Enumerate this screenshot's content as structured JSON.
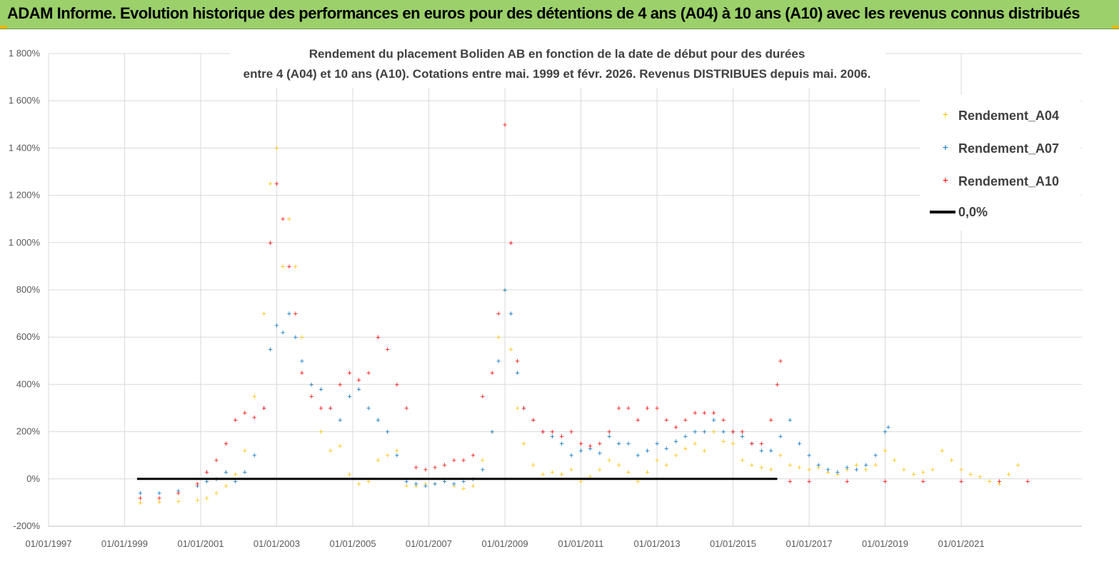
{
  "banner": {
    "text": "ADAM Informe. Evolution historique des performances en euros pour des détentions de 4 ans (A04) à 10 ans (A10) avec les revenus connus distribués"
  },
  "colors": {
    "banner_bg": "#9bd06a",
    "series_A04": "#ffc000",
    "series_A07": "#0070c0",
    "series_A10": "#ff0000",
    "zero_line": "#000000",
    "grid": "#d9d9d9"
  },
  "chart_data": {
    "type": "scatter",
    "title": [
      "Rendement du placement Boliden AB en fonction de la date de début pour des durées",
      "entre 4 (A04) et 10 ans (A10). Cotations entre mai. 1999 et févr. 2026. Revenus DISTRIBUES depuis mai. 2006."
    ],
    "xlabel": "",
    "ylabel": "",
    "x_ticks": [
      "01/01/1997",
      "01/01/1999",
      "01/01/2001",
      "01/01/2003",
      "01/01/2005",
      "01/01/2007",
      "01/01/2009",
      "01/01/2011",
      "01/01/2013",
      "01/01/2015",
      "01/01/2017",
      "01/01/2019",
      "01/01/2021"
    ],
    "y_ticks": [
      "-200%",
      "0%",
      "200%",
      "400%",
      "600%",
      "800%",
      "1 000%",
      "1 200%",
      "1 400%",
      "1 600%",
      "1 800%"
    ],
    "xlim": [
      "1997-01-01",
      "2023-12-31"
    ],
    "ylim": [
      -200,
      1800
    ],
    "grid": true,
    "legend_position": "top-right",
    "legend": [
      "Rendement_A04",
      "Rendement_A07",
      "Rendement_A10",
      "0,0%"
    ],
    "series": [
      {
        "name": "Rendement_A04",
        "color": "#ffc000",
        "x": [
          "1999-06-01",
          "1999-12-01",
          "2000-06-01",
          "2000-12-01",
          "2001-03-01",
          "2001-06-01",
          "2001-09-01",
          "2001-12-01",
          "2002-03-01",
          "2002-06-01",
          "2002-09-01",
          "2002-11-01",
          "2003-01-01",
          "2003-03-01",
          "2003-05-01",
          "2003-07-01",
          "2003-09-01",
          "2003-12-01",
          "2004-03-01",
          "2004-06-01",
          "2004-09-01",
          "2004-12-01",
          "2005-03-01",
          "2005-06-01",
          "2005-09-01",
          "2005-12-01",
          "2006-03-01",
          "2006-06-01",
          "2006-09-01",
          "2006-12-01",
          "2007-03-01",
          "2007-06-01",
          "2007-09-01",
          "2007-12-01",
          "2008-03-01",
          "2008-06-01",
          "2008-09-01",
          "2008-11-01",
          "2009-01-01",
          "2009-03-01",
          "2009-05-01",
          "2009-07-01",
          "2009-10-01",
          "2010-01-01",
          "2010-04-01",
          "2010-07-01",
          "2010-10-01",
          "2011-01-01",
          "2011-04-01",
          "2011-07-01",
          "2011-10-01",
          "2012-01-01",
          "2012-04-01",
          "2012-07-01",
          "2012-10-01",
          "2013-01-01",
          "2013-04-01",
          "2013-07-01",
          "2013-10-01",
          "2014-01-01",
          "2014-04-01",
          "2014-07-01",
          "2014-10-01",
          "2015-01-01",
          "2015-04-01",
          "2015-07-01",
          "2015-10-01",
          "2016-01-01",
          "2016-04-01",
          "2016-07-01",
          "2016-10-01",
          "2017-01-01",
          "2017-04-01",
          "2017-07-01",
          "2017-10-01",
          "2018-01-01",
          "2018-04-01",
          "2018-07-01",
          "2018-10-01",
          "2019-01-01",
          "2019-04-01",
          "2019-07-01",
          "2019-10-01",
          "2020-01-01",
          "2020-04-01",
          "2020-07-01",
          "2020-10-01",
          "2021-01-01",
          "2021-04-01",
          "2021-07-01",
          "2021-10-01",
          "2022-01-01",
          "2022-04-01",
          "2022-07-01"
        ],
        "y": [
          -100,
          -98,
          -95,
          -90,
          -80,
          -60,
          -30,
          20,
          120,
          350,
          700,
          1250,
          1400,
          900,
          1100,
          900,
          600,
          400,
          200,
          120,
          140,
          20,
          -20,
          -10,
          80,
          100,
          120,
          -30,
          -30,
          -20,
          -20,
          -10,
          -30,
          -40,
          -30,
          80,
          200,
          600,
          800,
          550,
          300,
          150,
          60,
          20,
          30,
          20,
          40,
          -10,
          10,
          40,
          80,
          60,
          30,
          -10,
          30,
          80,
          60,
          100,
          130,
          150,
          120,
          200,
          160,
          150,
          80,
          60,
          50,
          40,
          100,
          60,
          50,
          40,
          50,
          30,
          20,
          40,
          60,
          40,
          60,
          120,
          80,
          40,
          20,
          30,
          40,
          120,
          80,
          40,
          20,
          10,
          -10,
          -20,
          20,
          60
        ]
      },
      {
        "name": "Rendement_A07",
        "color": "#0070c0",
        "x": [
          "1999-06-01",
          "1999-12-01",
          "2000-06-01",
          "2000-12-01",
          "2001-03-01",
          "2001-06-01",
          "2001-09-01",
          "2001-12-01",
          "2002-03-01",
          "2002-06-01",
          "2002-09-01",
          "2002-11-01",
          "2003-01-01",
          "2003-03-01",
          "2003-05-01",
          "2003-07-01",
          "2003-09-01",
          "2003-12-01",
          "2004-03-01",
          "2004-06-01",
          "2004-09-01",
          "2004-12-01",
          "2005-03-01",
          "2005-06-01",
          "2005-09-01",
          "2005-12-01",
          "2006-03-01",
          "2006-06-01",
          "2006-09-01",
          "2006-12-01",
          "2007-03-01",
          "2007-06-01",
          "2007-09-01",
          "2007-12-01",
          "2008-03-01",
          "2008-06-01",
          "2008-09-01",
          "2008-11-01",
          "2009-01-01",
          "2009-03-01",
          "2009-05-01",
          "2009-07-01",
          "2009-10-01",
          "2010-01-01",
          "2010-04-01",
          "2010-07-01",
          "2010-10-01",
          "2011-01-01",
          "2011-04-01",
          "2011-07-01",
          "2011-10-01",
          "2012-01-01",
          "2012-04-01",
          "2012-07-01",
          "2012-10-01",
          "2013-01-01",
          "2013-04-01",
          "2013-07-01",
          "2013-10-01",
          "2014-01-01",
          "2014-04-01",
          "2014-07-01",
          "2014-10-01",
          "2015-01-01",
          "2015-04-01",
          "2015-07-01",
          "2015-10-01",
          "2016-01-01",
          "2016-04-01",
          "2016-07-01",
          "2016-10-01",
          "2017-01-01",
          "2017-04-01",
          "2017-07-01",
          "2017-10-01",
          "2018-01-01",
          "2018-04-01",
          "2018-07-01",
          "2018-10-01",
          "2019-01-01",
          "2019-02-01"
        ],
        "y": [
          -60,
          -60,
          -50,
          -30,
          -10,
          0,
          30,
          -10,
          30,
          100,
          300,
          550,
          650,
          620,
          700,
          600,
          500,
          400,
          380,
          300,
          250,
          350,
          380,
          300,
          250,
          200,
          100,
          -10,
          -20,
          -30,
          -20,
          -10,
          -20,
          -10,
          0,
          40,
          200,
          500,
          800,
          700,
          450,
          300,
          250,
          200,
          180,
          150,
          100,
          120,
          130,
          110,
          180,
          150,
          150,
          100,
          120,
          150,
          130,
          160,
          180,
          200,
          200,
          250,
          200,
          200,
          180,
          150,
          120,
          120,
          180,
          250,
          150,
          100,
          60,
          40,
          30,
          50,
          40,
          60,
          100,
          200,
          220
        ]
      },
      {
        "name": "Rendement_A10",
        "color": "#ff0000",
        "x": [
          "1999-06-01",
          "1999-12-01",
          "2000-06-01",
          "2000-12-01",
          "2001-03-01",
          "2001-06-01",
          "2001-09-01",
          "2001-12-01",
          "2002-03-01",
          "2002-06-01",
          "2002-09-01",
          "2002-11-01",
          "2003-01-01",
          "2003-03-01",
          "2003-05-01",
          "2003-07-01",
          "2003-09-01",
          "2003-12-01",
          "2004-03-01",
          "2004-06-01",
          "2004-09-01",
          "2004-12-01",
          "2005-03-01",
          "2005-06-01",
          "2005-09-01",
          "2005-12-01",
          "2006-03-01",
          "2006-06-01",
          "2006-09-01",
          "2006-12-01",
          "2007-03-01",
          "2007-06-01",
          "2007-09-01",
          "2007-12-01",
          "2008-03-01",
          "2008-06-01",
          "2008-09-01",
          "2008-11-01",
          "2009-01-01",
          "2009-03-01",
          "2009-05-01",
          "2009-07-01",
          "2009-10-01",
          "2010-01-01",
          "2010-04-01",
          "2010-07-01",
          "2010-10-01",
          "2011-01-01",
          "2011-04-01",
          "2011-07-01",
          "2011-10-01",
          "2012-01-01",
          "2012-04-01",
          "2012-07-01",
          "2012-10-01",
          "2013-01-01",
          "2013-04-01",
          "2013-07-01",
          "2013-10-01",
          "2014-01-01",
          "2014-04-01",
          "2014-07-01",
          "2014-10-01",
          "2015-01-01",
          "2015-04-01",
          "2015-07-01",
          "2015-10-01",
          "2016-01-01",
          "2016-03-01",
          "2016-04-01",
          "2016-07-01",
          "2017-01-01",
          "2018-01-01",
          "2019-01-01",
          "2020-01-01",
          "2021-01-01",
          "2022-01-01",
          "2022-10-01"
        ],
        "y": [
          -80,
          -80,
          -60,
          -20,
          30,
          80,
          150,
          250,
          280,
          260,
          300,
          1000,
          1250,
          1100,
          900,
          700,
          450,
          350,
          300,
          300,
          400,
          450,
          420,
          450,
          600,
          550,
          400,
          300,
          50,
          40,
          50,
          60,
          80,
          80,
          100,
          350,
          450,
          700,
          1500,
          1000,
          500,
          300,
          250,
          200,
          200,
          180,
          200,
          150,
          140,
          150,
          200,
          300,
          300,
          250,
          300,
          300,
          250,
          220,
          250,
          280,
          280,
          280,
          250,
          200,
          200,
          150,
          150,
          250,
          400,
          500,
          -10,
          -10,
          -10,
          -10,
          -10,
          -10,
          -10,
          -10
        ]
      }
    ],
    "reference_line": {
      "name": "0,0%",
      "y": 0,
      "x_start": "1999-05-01",
      "x_end": "2016-03-01"
    }
  }
}
